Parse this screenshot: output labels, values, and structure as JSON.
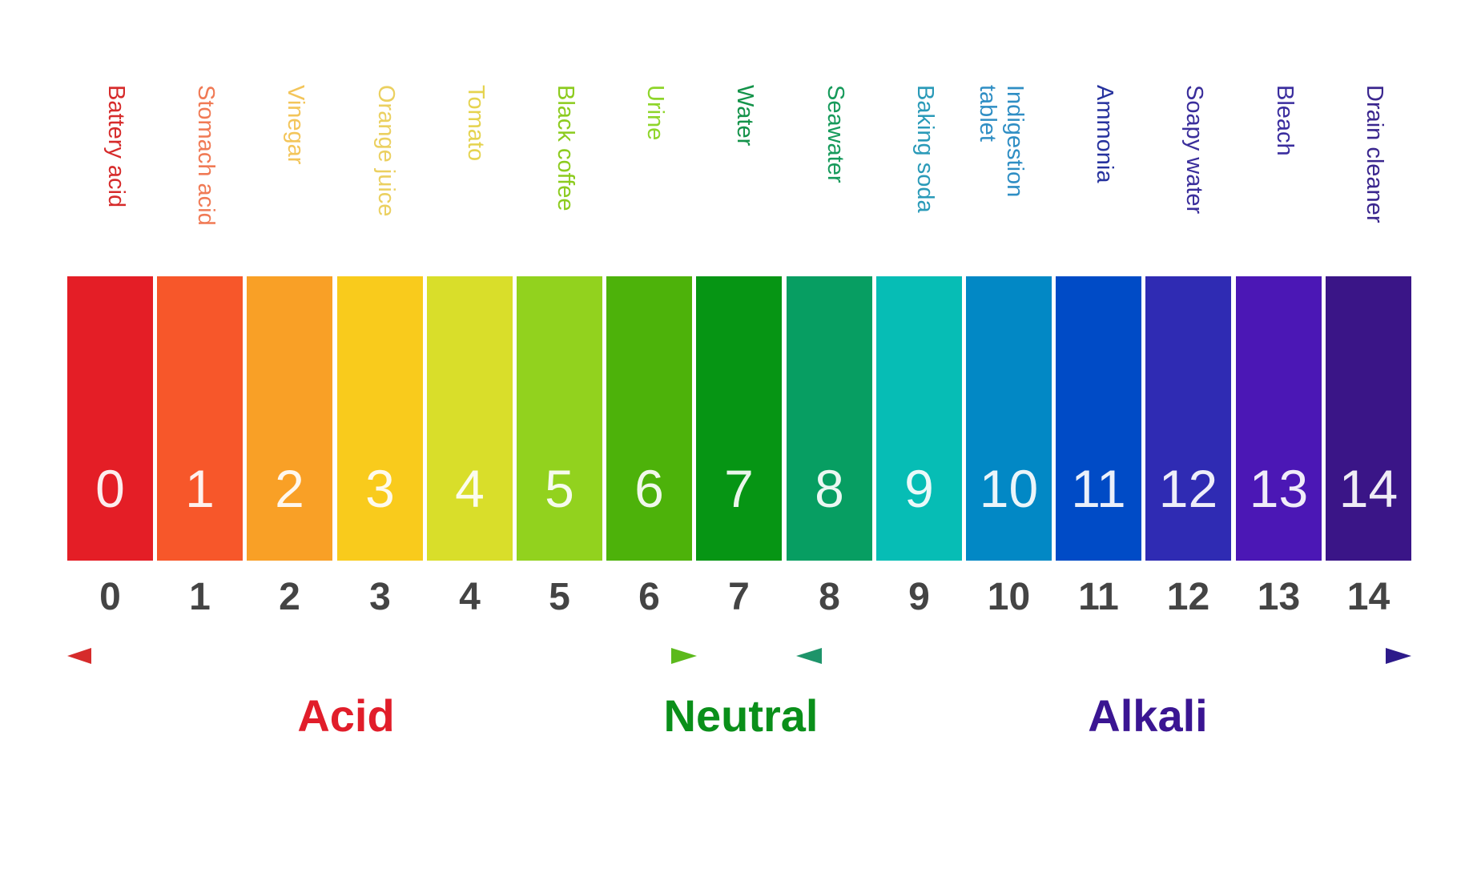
{
  "scale": [
    {
      "value": "0",
      "substance": "Battery acid",
      "color": "#E41E26",
      "label_color": "#D62B2B"
    },
    {
      "value": "1",
      "substance": "Stomach acid",
      "color": "#F7572A",
      "label_color": "#F07A55"
    },
    {
      "value": "2",
      "substance": "Vinegar",
      "color": "#F9A026",
      "label_color": "#F3C55A"
    },
    {
      "value": "3",
      "substance": "Orange juice",
      "color": "#F9CB1C",
      "label_color": "#EBD060"
    },
    {
      "value": "4",
      "substance": "Tomato",
      "color": "#D9DE2A",
      "label_color": "#E5D34F"
    },
    {
      "value": "5",
      "substance": "Black coffee",
      "color": "#92D21E",
      "label_color": "#8CCB1E"
    },
    {
      "value": "6",
      "substance": "Urine",
      "color": "#4DB20A",
      "label_color": "#8ED52A"
    },
    {
      "value": "7",
      "substance": "Water",
      "color": "#069514",
      "label_color": "#14934A"
    },
    {
      "value": "8",
      "substance": "Seawater",
      "color": "#079E62",
      "label_color": "#169A5B"
    },
    {
      "value": "9",
      "substance": "Baking soda",
      "color": "#06BDB5",
      "label_color": "#2A9AB8"
    },
    {
      "value": "10",
      "substance": "Indigestion\ntablet",
      "color": "#0288C5",
      "label_color": "#2F8EC4"
    },
    {
      "value": "11",
      "substance": "Ammonia",
      "color": "#004BC6",
      "label_color": "#27339E"
    },
    {
      "value": "12",
      "substance": "Soapy water",
      "color": "#2F2BB3",
      "label_color": "#3A2E9B"
    },
    {
      "value": "13",
      "substance": "Bleach",
      "color": "#4B17B5",
      "label_color": "#3A2D9E"
    },
    {
      "value": "14",
      "substance": "Drain cleaner",
      "color": "#3A1587",
      "label_color": "#3A268E"
    }
  ],
  "categories": {
    "acid": {
      "label": "Acid",
      "color": "#E11D2A"
    },
    "neutral": {
      "label": "Neutral",
      "color": "#0A8F1A"
    },
    "alkali": {
      "label": "Alkali",
      "color": "#3A1592"
    }
  },
  "arrows": {
    "acid_gradient": [
      "#D7283A",
      "#C84A2E",
      "#8C7A18",
      "#59B51A"
    ],
    "alkali_gradient": [
      "#1E946A",
      "#1C6C80",
      "#2E3EA0",
      "#3A1B8C"
    ]
  }
}
